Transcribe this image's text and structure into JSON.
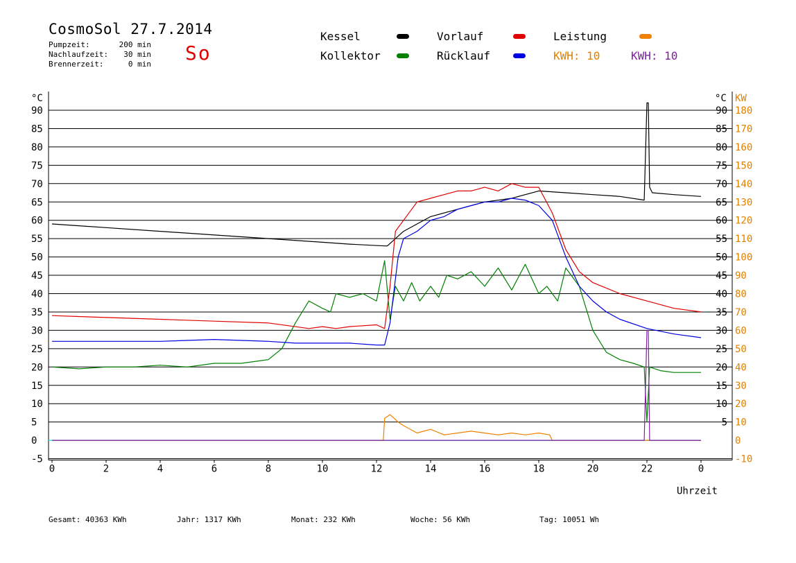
{
  "header": {
    "title": "CosmoSol 27.7.2014",
    "day": "So",
    "info": [
      {
        "label": "Pumpzeit:",
        "value": "200 min"
      },
      {
        "label": "Nachlaufzeit:",
        "value": "30 min"
      },
      {
        "label": "Brennerzeit:",
        "value": "0 min"
      }
    ]
  },
  "legend": {
    "items": [
      {
        "label": "Kessel",
        "color": "#000000"
      },
      {
        "label": "Kollektor",
        "color": "#008000"
      },
      {
        "label": "Vorlauf",
        "color": "#e00000"
      },
      {
        "label": "Rücklauf",
        "color": "#0000e0"
      },
      {
        "label": "Leistung",
        "color": "#f08000"
      }
    ],
    "kwh": [
      {
        "label": "KWH: 10",
        "color": "#e08000"
      },
      {
        "label": "KWH: 10",
        "color": "#8020a0"
      }
    ]
  },
  "footer": {
    "gesamt": "Gesamt:  40363 KWh",
    "jahr": "Jahr:  1317 KWh",
    "monat": "Monat:   232 KWh",
    "woche": "Woche:    56 KWh",
    "tag": "Tag:  10051 Wh"
  },
  "chart_data": {
    "type": "line",
    "ylabel_left": "°C",
    "ylabel_right_temp": "°C",
    "ylabel_right_power": "KW",
    "xlabel": "Uhrzeit",
    "x_ticks": [
      "0",
      "2",
      "4",
      "6",
      "8",
      "10",
      "12",
      "14",
      "16",
      "18",
      "20",
      "22",
      "0"
    ],
    "y_ticks_left": [
      "90",
      "85",
      "80",
      "75",
      "70",
      "65",
      "60",
      "55",
      "50",
      "45",
      "40",
      "35",
      "30",
      "25",
      "20",
      "15",
      "10",
      "5",
      "0",
      "-5"
    ],
    "y_ticks_right": [
      "90",
      "85",
      "80",
      "75",
      "70",
      "65",
      "60",
      "55",
      "50",
      "45",
      "40",
      "35",
      "30",
      "25",
      "20",
      "15",
      "10",
      "5"
    ],
    "y_ticks_power": [
      "180",
      "170",
      "160",
      "150",
      "140",
      "130",
      "120",
      "110",
      "100",
      "90",
      "80",
      "70",
      "60",
      "50",
      "40",
      "30",
      "20",
      "10",
      "0",
      "-10"
    ],
    "xlim": [
      0,
      24
    ],
    "ylim": [
      -5,
      92
    ],
    "ylim_power": [
      -10,
      184
    ],
    "series": [
      {
        "name": "Kessel",
        "color": "#000000",
        "x": [
          0,
          2,
          4,
          6,
          8,
          10,
          11,
          12.3,
          12.4,
          13,
          14,
          15,
          16,
          17,
          17.5,
          18,
          19,
          20,
          21,
          21.9,
          22,
          22.05,
          22.1,
          22.2,
          23,
          24
        ],
        "y": [
          59,
          58,
          57,
          56,
          55,
          54,
          53.5,
          53,
          53,
          57,
          61,
          63,
          65,
          66,
          67,
          68,
          67.5,
          67,
          66.5,
          65.5,
          92,
          92,
          69,
          67.5,
          67,
          66.5
        ]
      },
      {
        "name": "Kollektor",
        "color": "#008000",
        "x": [
          0,
          1,
          2,
          3,
          4,
          5,
          6,
          7,
          8,
          8.5,
          9,
          9.5,
          10,
          10.3,
          10.5,
          11,
          11.5,
          12,
          12.3,
          12.5,
          12.7,
          13,
          13.3,
          13.6,
          14,
          14.3,
          14.6,
          15,
          15.5,
          16,
          16.5,
          17,
          17.5,
          18,
          18.3,
          18.7,
          19,
          19.5,
          20,
          20.5,
          21,
          21.5,
          21.9,
          22,
          22.1,
          22.5,
          23,
          24
        ],
        "y": [
          20,
          19.5,
          20,
          20,
          20.5,
          20,
          21,
          21,
          22,
          25,
          32,
          38,
          36,
          35,
          40,
          39,
          40,
          38,
          49,
          33,
          42,
          38,
          43,
          38,
          42,
          39,
          45,
          44,
          46,
          42,
          47,
          41,
          48,
          40,
          42,
          38,
          47,
          42,
          30,
          24,
          22,
          21,
          20,
          5,
          20,
          19,
          18.5,
          18.5
        ]
      },
      {
        "name": "Vorlauf",
        "color": "#e00000",
        "x": [
          0,
          2,
          4,
          6,
          8,
          9.5,
          10,
          10.5,
          11,
          12,
          12.3,
          12.5,
          12.7,
          13,
          13.5,
          14,
          14.5,
          15,
          15.5,
          16,
          16.5,
          17,
          17.5,
          18,
          18.5,
          19,
          19.5,
          20,
          21,
          22,
          23,
          24
        ],
        "y": [
          34,
          33.5,
          33,
          32.5,
          32,
          30.5,
          31,
          30.5,
          31,
          31.5,
          30.5,
          42,
          57,
          60,
          65,
          66,
          67,
          68,
          68,
          69,
          68,
          70,
          69,
          69,
          62,
          52,
          46,
          43,
          40,
          38,
          36,
          35
        ]
      },
      {
        "name": "Rücklauf",
        "color": "#0000e0",
        "x": [
          0,
          2,
          4,
          6,
          8,
          9,
          10,
          11,
          12,
          12.3,
          12.5,
          12.8,
          13,
          13.5,
          14,
          14.5,
          15,
          15.5,
          16,
          16.5,
          17,
          17.5,
          18,
          18.5,
          19,
          19.5,
          20,
          20.5,
          21,
          22,
          23,
          24
        ],
        "y": [
          27,
          27,
          27,
          27.5,
          27,
          26.5,
          26.5,
          26.5,
          26,
          26,
          32,
          50,
          55,
          57,
          60,
          61,
          63,
          64,
          65,
          65,
          66,
          65.5,
          64,
          60,
          50,
          42,
          38,
          35,
          33,
          30.5,
          29,
          28
        ]
      },
      {
        "name": "Leistung",
        "color": "#f08000",
        "x": [
          0,
          12.25,
          12.3,
          12.5,
          12.8,
          13,
          13.5,
          14,
          14.5,
          15,
          15.5,
          16,
          16.5,
          17,
          17.5,
          18,
          18.4,
          18.5,
          24
        ],
        "y": [
          0,
          0,
          6,
          7,
          5,
          4,
          2,
          3,
          1.5,
          2,
          2.5,
          2,
          1.5,
          2,
          1.5,
          2,
          1.5,
          0,
          0
        ]
      },
      {
        "name": "KWH-line",
        "color": "#8020a0",
        "x": [
          0,
          21.9,
          22,
          22.05,
          22.1,
          24
        ],
        "y": [
          0,
          0,
          30,
          30,
          0,
          0
        ]
      }
    ]
  }
}
